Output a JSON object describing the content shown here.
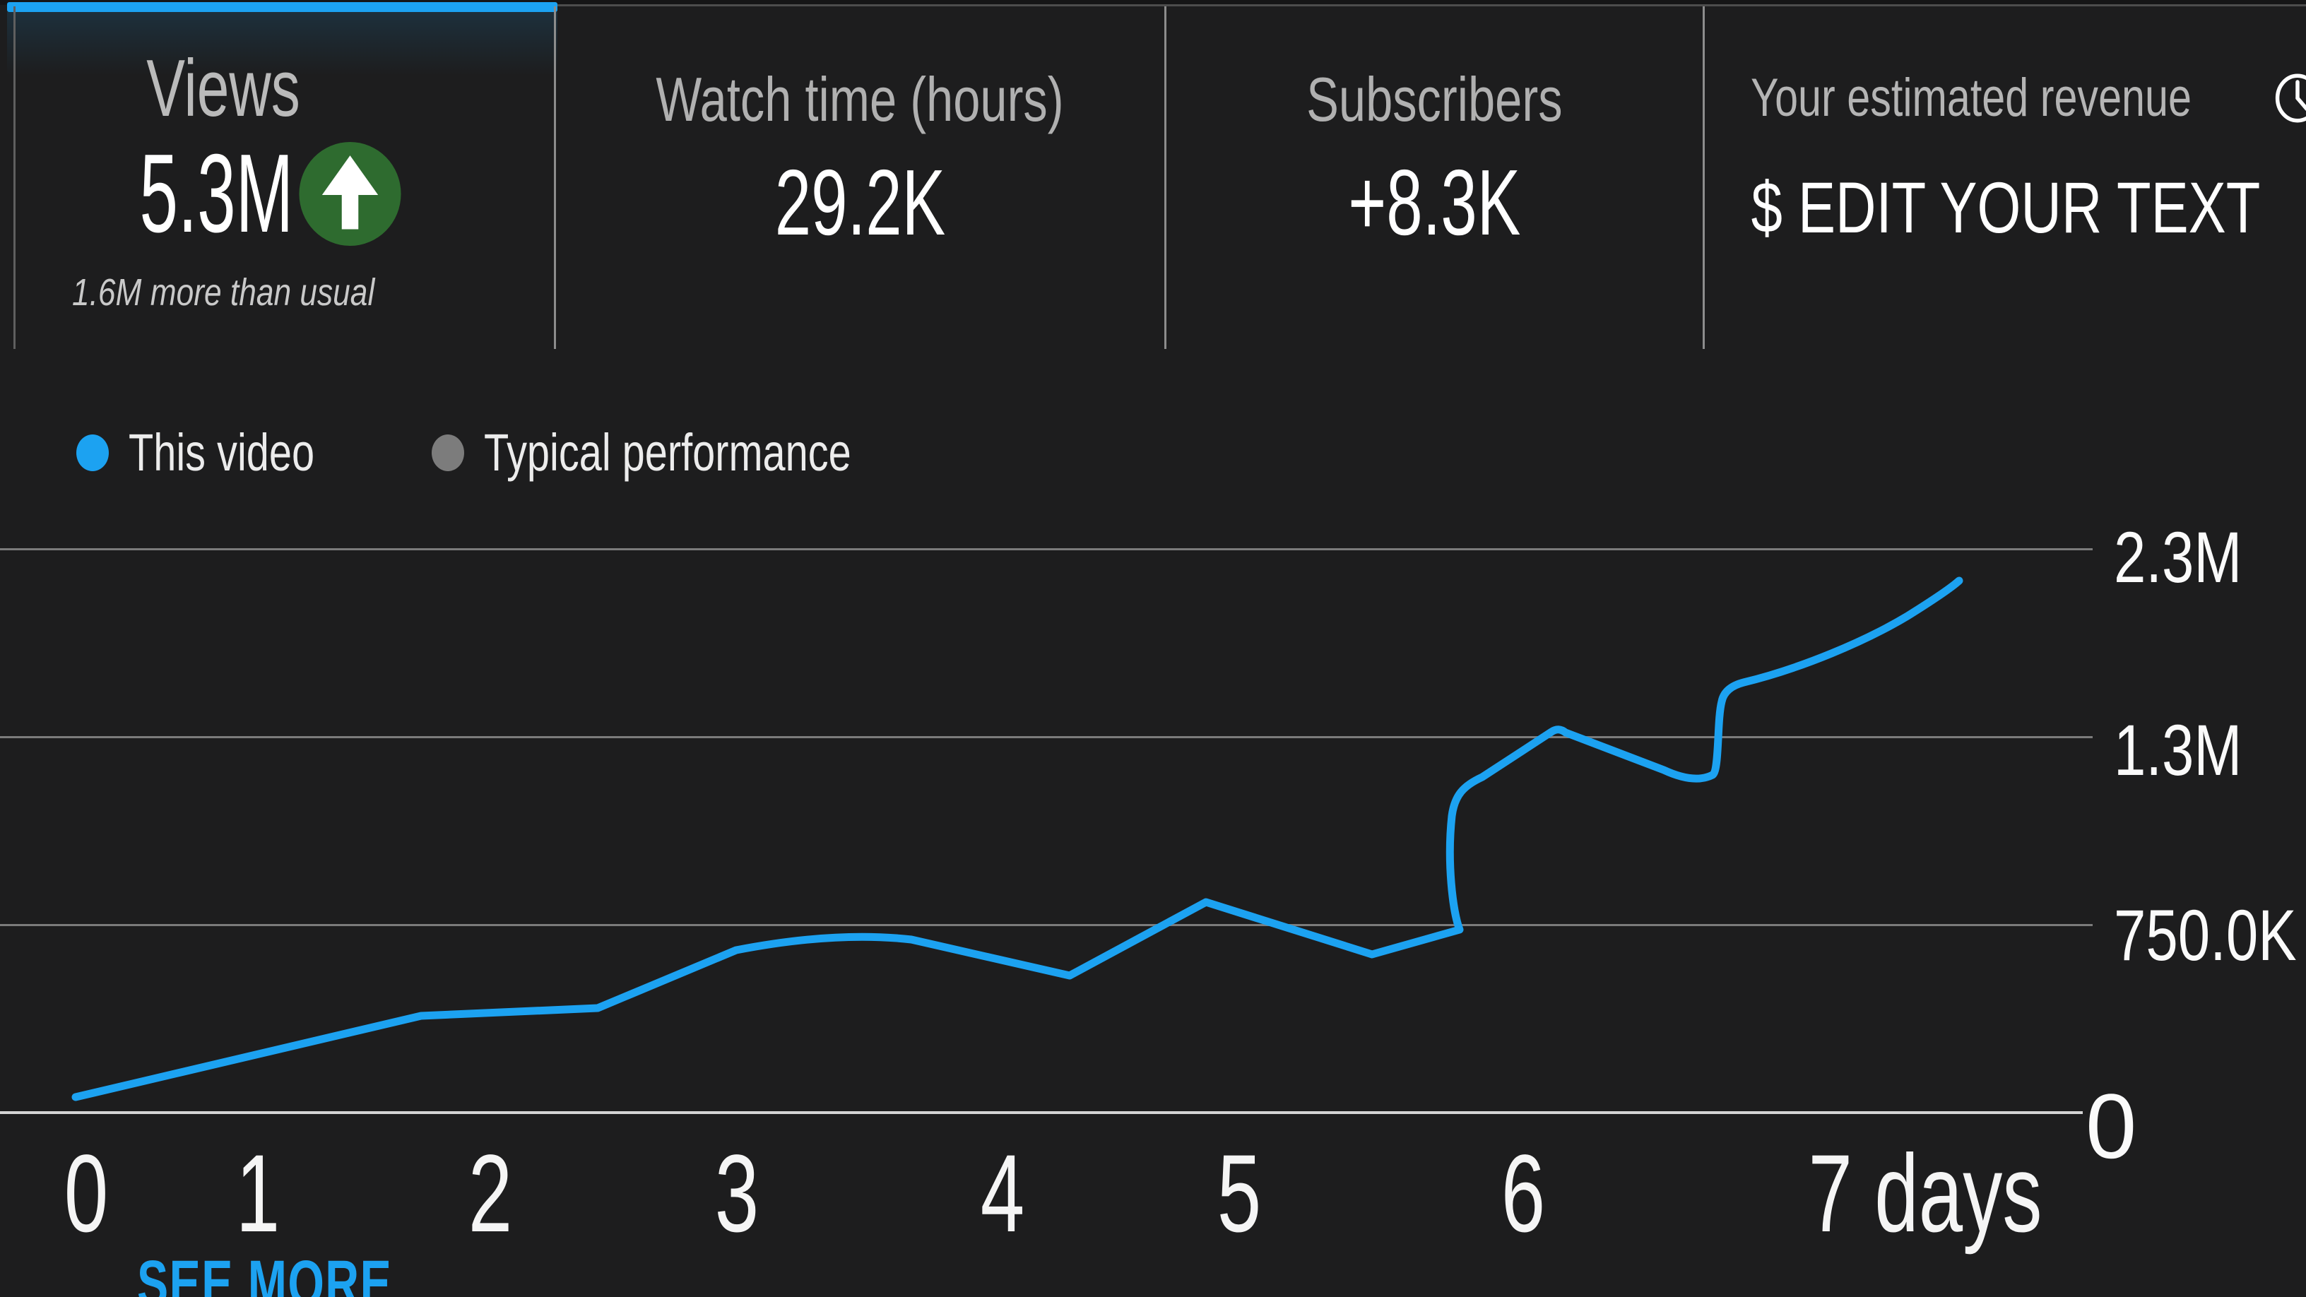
{
  "header_tabs": [
    {
      "title": "Views",
      "value": "5.3M",
      "note": "1.6M more than usual",
      "delta_icon": "arrow-up-circle",
      "active": true
    },
    {
      "title": "Watch time (hours)",
      "value": "29.2K"
    },
    {
      "title": "Subscribers",
      "value": "+8.3K"
    },
    {
      "title": "Your estimated revenue",
      "value": "$ EDIT YOUR TEXT",
      "title_icon": "clock"
    }
  ],
  "legend": {
    "items": [
      {
        "label": "This video",
        "color": "#1ca2f1"
      },
      {
        "label": "Typical performance",
        "color": "#7c7c7c"
      }
    ]
  },
  "chart_data": {
    "type": "line",
    "x": [
      0,
      1,
      2,
      3,
      4,
      5,
      6,
      7
    ],
    "series": [
      {
        "name": "This video",
        "color": "#1ca2f1",
        "values": [
          60000,
          240000,
          410000,
          650000,
          600000,
          790000,
          1230000,
          1820000
        ],
        "end_value": 2130000
      }
    ],
    "y_tick_labels": [
      "2.3M",
      "1.3M",
      "750.0K",
      "0"
    ],
    "x_tick_labels": [
      "0",
      "1",
      "2",
      "3",
      "4",
      "5",
      "6",
      "7 days"
    ],
    "xlabel": "days",
    "grid": true,
    "legend_position": "top-left",
    "note": "Typical performance series appears in legend only; no gray line is drawn"
  },
  "chart_render": {
    "line_path": "M 107 1553 L 596 1438 L 846 1427 L 1042 1345 C 1140 1326 1220 1322 1290 1330 L 1514 1381 L 1707 1277 L 1942 1351 L 2066 1316 C 2056 1290 2048 1220 2055 1155 C 2059 1125 2072 1112 2098 1100 L 2196 1036 Q 2206 1029 2216 1037 L 2355 1090 Q 2398 1110 2424 1097 C 2434 1090 2430 1020 2437 993 Q 2441 973 2468 966 C 2550 946 2640 908 2700 872 C 2740 847 2762 832 2773 822"
  },
  "footer": {
    "see_more": "SEE MORE"
  },
  "colors": {
    "accent_blue": "#1ca2f1",
    "positive_green": "#2e6b2f",
    "background": "#1d1d1e",
    "gridline": "#7b7b7b",
    "axis_line": "#d4d4d4",
    "divider": "#8c8c8c",
    "title_text": "#b0b0b0",
    "value_text": "#ffffff"
  }
}
